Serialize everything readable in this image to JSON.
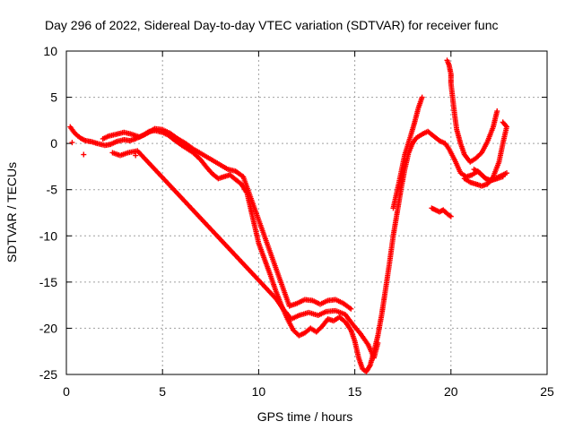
{
  "chart_data": {
    "type": "scatter",
    "title": "Day 296 of 2022, Sidereal Day-to-day VTEC variation (SDTVAR) for receiver func",
    "xlabel": "GPS time / hours",
    "ylabel": "SDTVAR / TECUs",
    "xlim": [
      0,
      25
    ],
    "ylim": [
      -25,
      10
    ],
    "xticks": [
      0,
      5,
      10,
      15,
      20,
      25
    ],
    "yticks": [
      -25,
      -20,
      -15,
      -10,
      -5,
      0,
      5,
      10
    ],
    "grid": true,
    "marker": "+",
    "color": "#ff0000",
    "series": [
      {
        "name": "main",
        "points": [
          [
            0.2,
            1.8
          ],
          [
            0.4,
            1.2
          ],
          [
            0.6,
            0.8
          ],
          [
            0.8,
            0.5
          ],
          [
            1.0,
            0.3
          ],
          [
            1.3,
            0.2
          ],
          [
            1.6,
            0.0
          ],
          [
            2.0,
            -0.2
          ],
          [
            2.3,
            -0.1
          ],
          [
            2.6,
            0.2
          ],
          [
            3.0,
            0.4
          ],
          [
            3.3,
            0.3
          ],
          [
            3.6,
            0.5
          ],
          [
            4.0,
            0.9
          ],
          [
            4.3,
            1.3
          ],
          [
            4.6,
            1.4
          ],
          [
            5.0,
            1.2
          ],
          [
            5.3,
            0.9
          ],
          [
            5.6,
            0.4
          ],
          [
            6.0,
            -0.2
          ],
          [
            6.3,
            -0.6
          ],
          [
            6.6,
            -1.0
          ],
          [
            7.0,
            -1.8
          ],
          [
            7.3,
            -2.6
          ],
          [
            7.6,
            -3.3
          ],
          [
            7.9,
            -3.8
          ],
          [
            8.2,
            -3.6
          ],
          [
            8.5,
            -3.4
          ],
          [
            8.8,
            -3.9
          ],
          [
            9.1,
            -4.4
          ],
          [
            9.4,
            -5.4
          ],
          [
            9.6,
            -7.2
          ],
          [
            9.8,
            -9.0
          ],
          [
            10.0,
            -10.8
          ],
          [
            10.3,
            -12.5
          ],
          [
            10.6,
            -14.2
          ],
          [
            10.9,
            -16.0
          ],
          [
            11.2,
            -17.6
          ],
          [
            11.5,
            -19.0
          ],
          [
            11.8,
            -20.2
          ],
          [
            12.1,
            -20.8
          ],
          [
            12.4,
            -20.5
          ],
          [
            12.7,
            -20.0
          ],
          [
            13.0,
            -20.4
          ],
          [
            13.3,
            -19.8
          ],
          [
            13.6,
            -19.0
          ],
          [
            13.9,
            -19.2
          ],
          [
            14.2,
            -18.8
          ],
          [
            14.5,
            -19.3
          ],
          [
            14.8,
            -20.2
          ],
          [
            15.0,
            -21.4
          ],
          [
            15.2,
            -23.2
          ],
          [
            15.4,
            -24.4
          ],
          [
            15.6,
            -24.7
          ],
          [
            15.8,
            -24.0
          ],
          [
            16.0,
            -22.5
          ],
          [
            16.2,
            -20.8
          ],
          [
            16.4,
            -18.5
          ],
          [
            16.6,
            -15.8
          ],
          [
            16.8,
            -13.0
          ],
          [
            17.0,
            -10.0
          ],
          [
            17.2,
            -7.5
          ],
          [
            17.4,
            -5.0
          ],
          [
            17.6,
            -2.8
          ],
          [
            17.8,
            -1.0
          ],
          [
            18.0,
            0.0
          ],
          [
            18.2,
            0.6
          ],
          [
            18.5,
            1.0
          ],
          [
            18.8,
            1.3
          ],
          [
            19.1,
            0.8
          ],
          [
            19.4,
            0.3
          ],
          [
            19.7,
            0.0
          ],
          [
            19.9,
            -0.6
          ],
          [
            20.2,
            -1.8
          ],
          [
            20.5,
            -3.2
          ],
          [
            20.8,
            -3.6
          ],
          [
            21.1,
            -3.4
          ],
          [
            21.4,
            -3.0
          ],
          [
            21.7,
            -3.6
          ],
          [
            22.0,
            -4.1
          ],
          [
            22.3,
            -3.8
          ],
          [
            22.6,
            -3.5
          ],
          [
            22.9,
            -3.2
          ]
        ]
      },
      {
        "name": "upper",
        "points": [
          [
            1.9,
            0.5
          ],
          [
            2.2,
            0.8
          ],
          [
            2.6,
            1.0
          ],
          [
            3.0,
            1.2
          ],
          [
            3.4,
            1.0
          ],
          [
            3.8,
            0.7
          ],
          [
            4.2,
            1.1
          ],
          [
            4.6,
            1.6
          ],
          [
            5.0,
            1.5
          ],
          [
            5.4,
            1.1
          ],
          [
            5.8,
            0.5
          ],
          [
            6.2,
            0.0
          ],
          [
            6.6,
            -0.6
          ],
          [
            8.4,
            -2.8
          ],
          [
            8.8,
            -3.0
          ],
          [
            9.2,
            -3.6
          ],
          [
            11.6,
            -17.6
          ],
          [
            12.0,
            -17.3
          ],
          [
            12.4,
            -16.9
          ],
          [
            12.8,
            -17.0
          ],
          [
            13.2,
            -17.4
          ],
          [
            13.6,
            -17.0
          ],
          [
            14.0,
            -16.9
          ],
          [
            14.4,
            -17.3
          ],
          [
            14.8,
            -17.9
          ]
        ]
      },
      {
        "name": "lower",
        "points": [
          [
            2.4,
            -1.0
          ],
          [
            2.8,
            -1.3
          ],
          [
            3.2,
            -1.0
          ],
          [
            3.7,
            -0.8
          ],
          [
            10.9,
            -16.8
          ],
          [
            11.3,
            -18.0
          ],
          [
            11.7,
            -19.0
          ],
          [
            12.1,
            -18.6
          ],
          [
            12.6,
            -18.3
          ],
          [
            13.1,
            -18.6
          ],
          [
            13.5,
            -18.2
          ],
          [
            14.0,
            -18.1
          ],
          [
            14.5,
            -18.5
          ],
          [
            14.9,
            -19.6
          ],
          [
            15.3,
            -20.6
          ],
          [
            15.7,
            -21.8
          ],
          [
            16.0,
            -23.2
          ],
          [
            16.2,
            -21.6
          ]
        ]
      },
      {
        "name": "rise-2",
        "points": [
          [
            17.0,
            -7.0
          ],
          [
            17.3,
            -4.2
          ],
          [
            17.6,
            -1.2
          ],
          [
            17.9,
            0.8
          ],
          [
            18.1,
            2.2
          ],
          [
            18.3,
            3.8
          ],
          [
            18.5,
            5.0
          ]
        ]
      },
      {
        "name": "late-1",
        "points": [
          [
            19.8,
            9.0
          ],
          [
            19.9,
            8.5
          ],
          [
            20.0,
            7.5
          ],
          [
            20.0,
            6.5
          ],
          [
            20.2,
            3.0
          ],
          [
            20.3,
            1.5
          ],
          [
            20.5,
            0.0
          ],
          [
            20.7,
            -1.2
          ],
          [
            21.0,
            -2.0
          ],
          [
            21.3,
            -1.6
          ],
          [
            21.6,
            -1.0
          ],
          [
            21.9,
            0.2
          ],
          [
            22.2,
            1.8
          ],
          [
            22.4,
            3.5
          ]
        ]
      },
      {
        "name": "late-2",
        "points": [
          [
            20.7,
            -3.8
          ],
          [
            21.0,
            -4.2
          ],
          [
            21.3,
            -4.4
          ],
          [
            21.6,
            -4.6
          ],
          [
            21.9,
            -4.4
          ],
          [
            22.2,
            -3.6
          ],
          [
            22.5,
            -2.0
          ],
          [
            22.7,
            0.0
          ],
          [
            22.9,
            1.8
          ],
          [
            22.7,
            2.3
          ]
        ]
      },
      {
        "name": "late-3",
        "points": [
          [
            21.2,
            -2.8
          ],
          [
            21.5,
            -3.2
          ],
          [
            21.8,
            -3.8
          ],
          [
            22.1,
            -4.0
          ],
          [
            22.4,
            -3.8
          ],
          [
            22.7,
            -3.6
          ]
        ]
      },
      {
        "name": "segment-19",
        "points": [
          [
            19.0,
            -7.0
          ],
          [
            19.2,
            -7.2
          ],
          [
            19.4,
            -7.4
          ],
          [
            19.6,
            -7.2
          ],
          [
            19.8,
            -7.6
          ],
          [
            20.0,
            -7.9
          ]
        ]
      },
      {
        "name": "outliers",
        "points": [
          [
            0.3,
            0.1
          ],
          [
            0.9,
            -1.2
          ],
          [
            3.6,
            -1.3
          ],
          [
            6.9,
            -1.0
          ]
        ]
      }
    ]
  }
}
